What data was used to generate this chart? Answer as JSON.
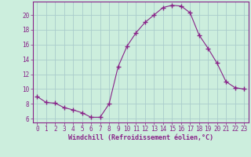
{
  "x": [
    0,
    1,
    2,
    3,
    4,
    5,
    6,
    7,
    8,
    9,
    10,
    11,
    12,
    13,
    14,
    15,
    16,
    17,
    18,
    19,
    20,
    21,
    22,
    23
  ],
  "y": [
    9.0,
    8.2,
    8.1,
    7.5,
    7.2,
    6.8,
    6.2,
    6.2,
    8.0,
    13.0,
    15.8,
    17.6,
    19.0,
    20.0,
    21.0,
    21.3,
    21.2,
    20.3,
    17.3,
    15.5,
    13.5,
    11.0,
    10.2,
    10.0
  ],
  "line_color": "#882288",
  "marker": "+",
  "marker_size": 4,
  "bg_color": "#cceedd",
  "grid_color": "#aacccc",
  "xlabel": "Windchill (Refroidissement éolien,°C)",
  "xlim": [
    -0.5,
    23.5
  ],
  "ylim": [
    5.5,
    21.8
  ],
  "yticks": [
    6,
    8,
    10,
    12,
    14,
    16,
    18,
    20
  ],
  "xticks": [
    0,
    1,
    2,
    3,
    4,
    5,
    6,
    7,
    8,
    9,
    10,
    11,
    12,
    13,
    14,
    15,
    16,
    17,
    18,
    19,
    20,
    21,
    22,
    23
  ],
  "tick_color": "#882288",
  "label_fontsize": 6.0,
  "tick_fontsize": 5.5
}
